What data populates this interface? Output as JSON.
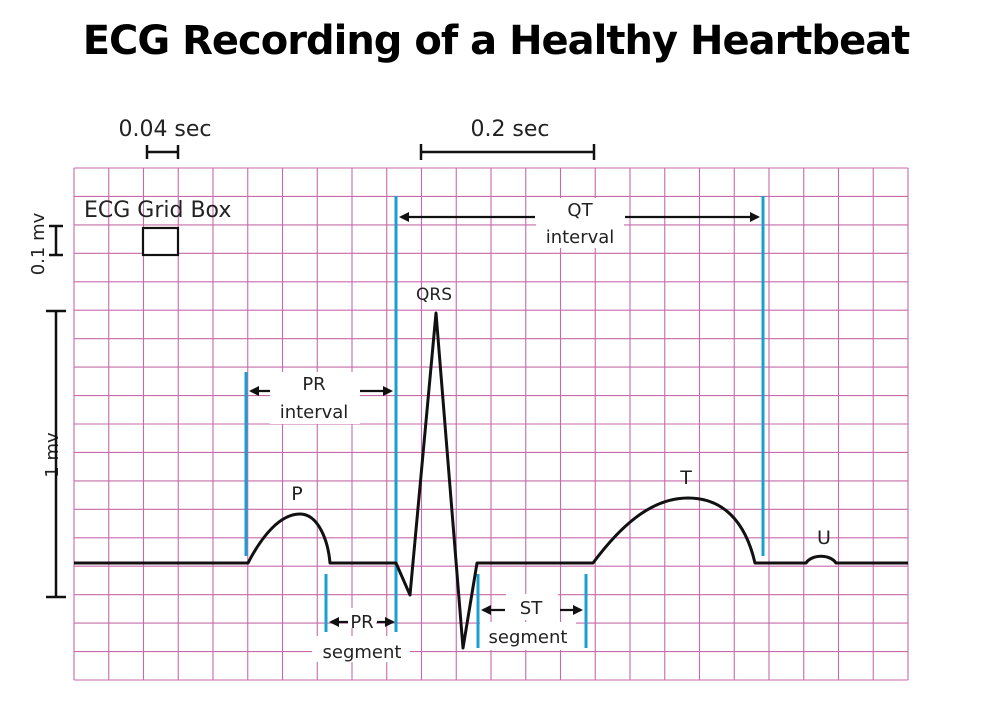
{
  "title": "ECG Recording of a Healthy Heartbeat",
  "scale": {
    "time_small": "0.04 sec",
    "time_large": "0.2 sec",
    "voltage_small": "0.1 mv",
    "voltage_large": "1 mv",
    "grid_box": "ECG Grid Box"
  },
  "waves": {
    "p": "P",
    "qrs": "QRS",
    "t": "T",
    "u": "U"
  },
  "intervals": {
    "pr_interval": [
      "PR",
      "interval"
    ],
    "qt_interval": [
      "QT",
      "interval"
    ],
    "pr_segment": [
      "PR",
      "segment"
    ],
    "st_segment": [
      "ST",
      "segment"
    ]
  },
  "colors": {
    "grid": "#c86aa8",
    "marker": "#1aa0d0",
    "trace": "#111111"
  }
}
